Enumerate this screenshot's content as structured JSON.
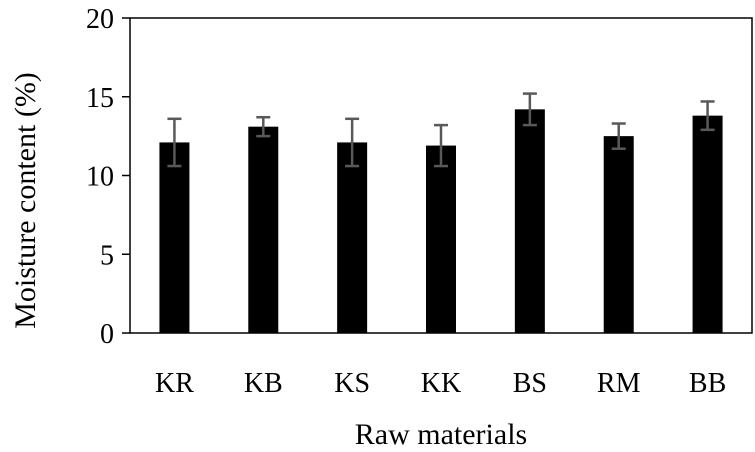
{
  "chart_data": {
    "type": "bar",
    "categories": [
      "KR",
      "KB",
      "KS",
      "KK",
      "BS",
      "RM",
      "BB"
    ],
    "values": [
      12.1,
      13.1,
      12.1,
      11.9,
      14.2,
      12.5,
      13.8
    ],
    "errors": [
      1.5,
      0.6,
      1.5,
      1.3,
      1.0,
      0.8,
      0.9
    ],
    "xlabel": "Raw materials",
    "ylabel": "Moisture content (%)",
    "ylim": [
      0,
      20
    ],
    "yticks": [
      0,
      5,
      10,
      15,
      20
    ],
    "grid": false,
    "colors": {
      "bar": "#000000",
      "error_bar": "#595959"
    }
  }
}
